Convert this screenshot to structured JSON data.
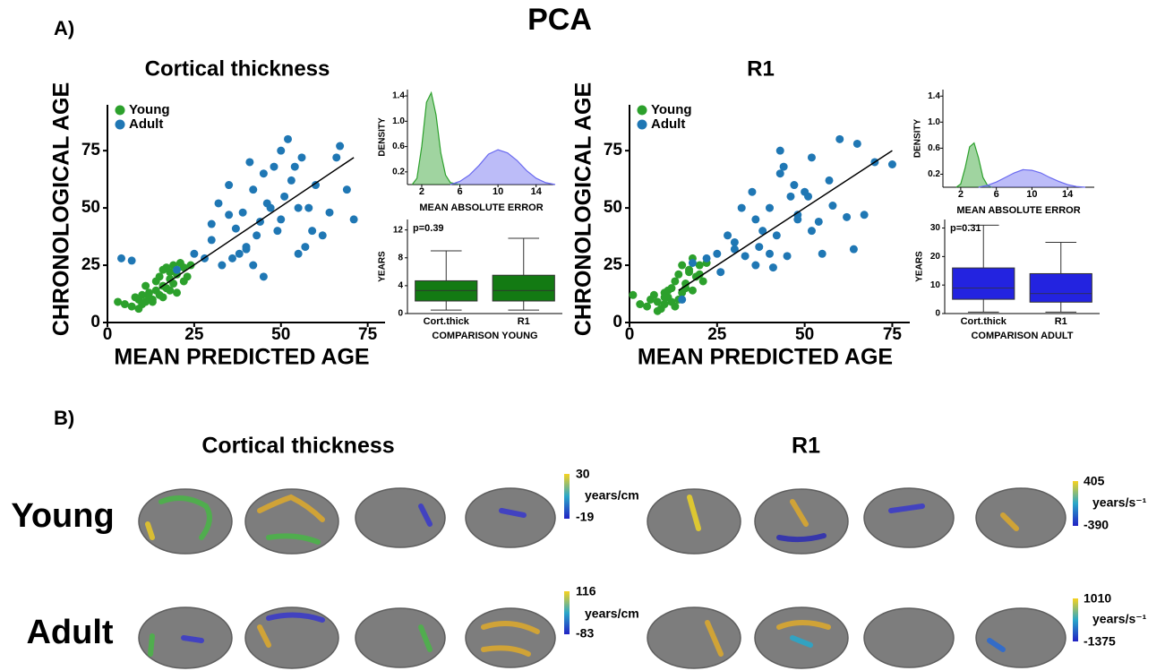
{
  "title": "PCA",
  "panel_labels": [
    "A)",
    "B)"
  ],
  "chart_data": [
    {
      "type": "scatter",
      "title": "Cortical thickness",
      "x_label": "MEAN PREDICTED AGE",
      "y_label": "CHRONOLOGICAL AGE",
      "xlim": [
        0,
        80
      ],
      "ylim": [
        0,
        95
      ],
      "xticks": [
        0,
        25,
        50,
        75
      ],
      "yticks": [
        0,
        25,
        50,
        75
      ],
      "series": [
        {
          "name": "Young",
          "color": "#2ca02c",
          "x": [
            3,
            5,
            7,
            8,
            9,
            10,
            10,
            11,
            12,
            12,
            13,
            14,
            14,
            15,
            15,
            16,
            16,
            17,
            17,
            18,
            18,
            19,
            19,
            20,
            20,
            21,
            22,
            22,
            23,
            24,
            9,
            13,
            16,
            18,
            11
          ],
          "values": [
            9,
            8,
            7,
            11,
            10,
            8,
            12,
            9,
            11,
            13,
            10,
            14,
            18,
            12,
            20,
            16,
            23,
            15,
            24,
            19,
            22,
            17,
            25,
            13,
            21,
            26,
            18,
            24,
            20,
            25,
            6,
            9,
            11,
            14,
            16
          ]
        },
        {
          "name": "Adult",
          "color": "#1f77b4",
          "x": [
            4,
            7,
            20,
            25,
            28,
            30,
            32,
            33,
            35,
            36,
            38,
            39,
            40,
            41,
            42,
            42,
            43,
            44,
            45,
            46,
            47,
            48,
            49,
            50,
            51,
            52,
            53,
            54,
            55,
            56,
            57,
            58,
            59,
            60,
            62,
            64,
            66,
            67,
            69,
            71,
            35,
            40,
            45,
            50,
            55,
            30,
            37
          ],
          "values": [
            28,
            27,
            23,
            30,
            28,
            43,
            52,
            25,
            47,
            28,
            30,
            48,
            32,
            70,
            25,
            58,
            38,
            44,
            65,
            52,
            50,
            68,
            40,
            45,
            55,
            80,
            62,
            68,
            30,
            72,
            33,
            50,
            40,
            60,
            38,
            48,
            72,
            77,
            58,
            45,
            60,
            33,
            20,
            75,
            50,
            36,
            41
          ]
        }
      ],
      "fit": {
        "x": [
          15,
          71
        ],
        "values": [
          15,
          72
        ]
      }
    },
    {
      "type": "density",
      "x_label": "MEAN ABSOLUTE ERROR",
      "y_label": "DENSITY",
      "xlim": [
        0.5,
        16
      ],
      "ylim": [
        0,
        1.5
      ],
      "xticks": [
        2,
        6,
        10,
        14
      ],
      "yticks": [
        0.2,
        0.6,
        {
          "value": 1.0,
          "label": "1.0"
        },
        1.4
      ],
      "series": [
        {
          "color": "#2ca02c",
          "x": [
            1,
            1.5,
            2,
            2.5,
            3,
            3.5,
            4,
            4.5,
            5,
            6
          ],
          "values": [
            0,
            0.1,
            0.6,
            1.3,
            1.45,
            1.1,
            0.5,
            0.15,
            0.03,
            0
          ]
        },
        {
          "color": "#6a6af0",
          "x": [
            5,
            6,
            7,
            8,
            9,
            10,
            11,
            12,
            13,
            14,
            15,
            16
          ],
          "values": [
            0,
            0.05,
            0.15,
            0.3,
            0.48,
            0.55,
            0.5,
            0.38,
            0.22,
            0.1,
            0.03,
            0
          ]
        }
      ]
    },
    {
      "type": "box",
      "x_label": "COMPARISON YOUNG",
      "y_label": "YEARS",
      "annotation": "p=0.39",
      "color": "#137a13",
      "ylim": [
        0,
        13.5
      ],
      "yticks": [
        0,
        4,
        8,
        12
      ],
      "categories": [
        "Cort.thick",
        "R1"
      ],
      "boxes": [
        {
          "min": 0.5,
          "q1": 1.8,
          "median": 3.3,
          "q3": 4.7,
          "max": 9
        },
        {
          "min": 0.5,
          "q1": 1.8,
          "median": 3.3,
          "q3": 5.5,
          "max": 10.8
        }
      ]
    },
    {
      "type": "scatter",
      "title": "R1",
      "x_label": "MEAN PREDICTED AGE",
      "y_label": "CHRONOLOGICAL AGE",
      "xlim": [
        0,
        80
      ],
      "ylim": [
        0,
        95
      ],
      "xticks": [
        0,
        25,
        50,
        75
      ],
      "yticks": [
        0,
        25,
        50,
        75
      ],
      "series": [
        {
          "name": "Young",
          "color": "#2ca02c",
          "x": [
            1,
            3,
            5,
            6,
            7,
            8,
            9,
            10,
            10,
            11,
            12,
            12,
            13,
            14,
            14,
            15,
            15,
            16,
            17,
            18,
            18,
            19,
            20,
            21,
            22,
            8,
            10,
            13,
            16,
            20,
            11,
            17
          ],
          "values": [
            12,
            8,
            7,
            10,
            12,
            9,
            6,
            8,
            13,
            11,
            9,
            15,
            18,
            10,
            21,
            13,
            25,
            17,
            22,
            14,
            28,
            20,
            25,
            18,
            26,
            5,
            11,
            7,
            15,
            21,
            14,
            23
          ]
        },
        {
          "name": "Adult",
          "color": "#1f77b4",
          "x": [
            15,
            18,
            22,
            25,
            28,
            30,
            32,
            33,
            35,
            36,
            37,
            38,
            40,
            41,
            42,
            43,
            44,
            45,
            46,
            47,
            48,
            50,
            51,
            52,
            54,
            55,
            57,
            58,
            60,
            62,
            64,
            65,
            67,
            70,
            75,
            36,
            40,
            43,
            48,
            52,
            30,
            26
          ],
          "values": [
            10,
            26,
            28,
            30,
            38,
            35,
            50,
            29,
            57,
            45,
            33,
            40,
            50,
            24,
            38,
            75,
            68,
            29,
            55,
            60,
            47,
            57,
            55,
            72,
            44,
            30,
            62,
            51,
            80,
            46,
            32,
            78,
            47,
            70,
            69,
            25,
            30,
            65,
            45,
            40,
            32,
            22
          ]
        }
      ],
      "fit": {
        "x": [
          14,
          75
        ],
        "values": [
          14,
          75
        ]
      }
    },
    {
      "type": "density",
      "x_label": "MEAN ABSOLUTE ERROR",
      "y_label": "DENSITY",
      "xlim": [
        0,
        17
      ],
      "ylim": [
        0,
        1.5
      ],
      "xticks": [
        2,
        6,
        10,
        14
      ],
      "yticks": [
        0.2,
        0.6,
        {
          "value": 1.0,
          "label": "1.0"
        },
        1.4
      ],
      "series": [
        {
          "color": "#2ca02c",
          "x": [
            1.5,
            2,
            2.5,
            3,
            3.5,
            4,
            4.5,
            5,
            5.5
          ],
          "values": [
            0,
            0.05,
            0.3,
            0.62,
            0.68,
            0.45,
            0.15,
            0.03,
            0
          ]
        },
        {
          "color": "#6a6af0",
          "x": [
            4,
            5,
            6,
            7,
            8,
            9,
            10,
            11,
            12,
            13,
            14,
            15,
            16
          ],
          "values": [
            0,
            0.03,
            0.08,
            0.15,
            0.22,
            0.27,
            0.26,
            0.22,
            0.15,
            0.09,
            0.04,
            0.01,
            0
          ]
        }
      ]
    },
    {
      "type": "box",
      "x_label": "COMPARISON ADULT",
      "y_label": "YEARS",
      "annotation": "p=0.31",
      "color": "#2323e0",
      "ylim": [
        0,
        33
      ],
      "yticks": [
        0,
        10,
        20,
        30
      ],
      "categories": [
        "Cort.thick",
        "R1"
      ],
      "boxes": [
        {
          "min": 0.5,
          "q1": 5,
          "median": 9,
          "q3": 16,
          "max": 31
        },
        {
          "min": 0.5,
          "q1": 4,
          "median": 7,
          "q3": 14,
          "max": 25
        }
      ]
    }
  ],
  "brain_maps": {
    "rows": [
      "Young",
      "Adult"
    ],
    "columns": [
      {
        "title": "Cortical thickness",
        "colorbars": [
          {
            "max": "30",
            "unit": "years/cm",
            "min": "-19"
          },
          {
            "max": "116",
            "unit": "years/cm",
            "min": "-83"
          }
        ]
      },
      {
        "title": "R1",
        "colorbars": [
          {
            "max": "405",
            "unit": "years/s⁻¹",
            "min": "-390"
          },
          {
            "max": "1010",
            "unit": "years/s⁻¹",
            "min": "-1375"
          }
        ]
      }
    ]
  }
}
